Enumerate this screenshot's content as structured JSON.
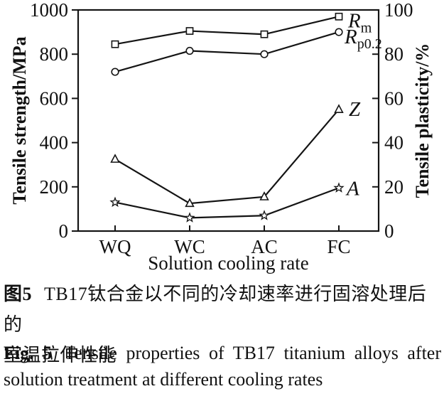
{
  "figure": {
    "caption_cn": {
      "fig_label": "图5",
      "line1_rest": "TB17钛合金以不同的冷却速率进行固溶处理后的",
      "line2": "室温拉伸性能"
    },
    "caption_en": {
      "fig_label": "Fig. 5",
      "line1_rest": "Tensile properties of TB17 titanium alloys after",
      "line2": "solution treatment at different cooling rates"
    }
  },
  "chart_data": {
    "type": "line",
    "title": "",
    "categories": [
      "WQ",
      "WC",
      "AC",
      "FC"
    ],
    "x_label": "Solution cooling rate",
    "left_axis": {
      "label": "Tensile strength/MPa",
      "range": [
        0,
        1000
      ],
      "ticks": [
        0,
        200,
        400,
        600,
        800,
        1000
      ]
    },
    "right_axis": {
      "label": "Tensile plasticity/%",
      "range": [
        0,
        100
      ],
      "ticks": [
        0,
        20,
        40,
        60,
        80,
        100
      ]
    },
    "grid": false,
    "legend_position": "end-of-line-labels",
    "series": [
      {
        "name": "Rm",
        "label": {
          "main": "R",
          "sub": "m"
        },
        "marker": "square",
        "axis": "left",
        "unit": "MPa",
        "values": [
          845,
          905,
          890,
          970
        ]
      },
      {
        "name": "Rp0.2",
        "label": {
          "main": "R",
          "sub": "p0.2"
        },
        "marker": "circle",
        "axis": "left",
        "unit": "MPa",
        "values": [
          720,
          815,
          800,
          900
        ]
      },
      {
        "name": "Z",
        "label": {
          "main": "Z",
          "sub": ""
        },
        "marker": "triangle",
        "axis": "right",
        "unit": "%",
        "values": [
          32.5,
          12.5,
          15.5,
          55
        ]
      },
      {
        "name": "A",
        "label": {
          "main": "A",
          "sub": ""
        },
        "marker": "star",
        "axis": "right",
        "unit": "%",
        "values": [
          13,
          6,
          7,
          19.5
        ]
      }
    ],
    "line_color": "#141414",
    "marker_fill": "#ffffff",
    "background": "#ffffff"
  }
}
